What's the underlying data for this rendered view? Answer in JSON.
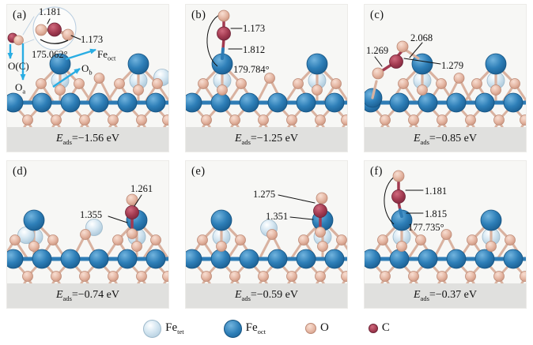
{
  "figure": {
    "energy_symbol": "E",
    "energy_subscript": "ads",
    "panels": [
      {
        "label": "(a)",
        "eads_value": "=−1.56 eV",
        "annotations": {
          "len1": "1.181",
          "len2": "1.173",
          "angle": "175.062°",
          "sites": {
            "oc": {
              "main": "O(C)",
              "sub": ""
            },
            "oa": {
              "main": "O",
              "sub": "a"
            },
            "ob": {
              "main": "O",
              "sub": "b"
            },
            "fe": {
              "main": "Fe",
              "sub": "oct"
            }
          }
        }
      },
      {
        "label": "(b)",
        "eads_value": "=−1.25 eV",
        "annotations": {
          "len1": "1.173",
          "len2": "1.812",
          "angle": "179.784°"
        }
      },
      {
        "label": "(c)",
        "eads_value": "=−0.85 eV",
        "annotations": {
          "len1": "1.269",
          "len2": "2.068",
          "len3": "1.279"
        }
      },
      {
        "label": "(d)",
        "eads_value": "=−0.74 eV",
        "annotations": {
          "len1": "1.261",
          "len2": "1.355"
        }
      },
      {
        "label": "(e)",
        "eads_value": "=−0.59 eV",
        "annotations": {
          "len1": "1.275",
          "len2": "1.351"
        }
      },
      {
        "label": "(f)",
        "eads_value": "=−0.37 eV",
        "annotations": {
          "len1": "1.181",
          "len2": "1.815",
          "angle": "177.735°"
        }
      }
    ],
    "legend": [
      {
        "main": "Fe",
        "sub": "tet",
        "color": "#cfe3f0"
      },
      {
        "main": "Fe",
        "sub": "oct",
        "color": "#2e7fb8"
      },
      {
        "main": "O",
        "sub": "",
        "color": "#e6b9a6"
      },
      {
        "main": "C",
        "sub": "",
        "color": "#a23a50"
      }
    ],
    "colors": {
      "fe_oct": "#2e7fb8",
      "fe_tet": "#cfe3f0",
      "oxygen": "#e6b9a6",
      "carbon": "#a23a50",
      "arrow_accent": "#29ade3",
      "caption_bar": "#e0e0de",
      "bond_pink": "#d9b2a0",
      "bond_blue": "#2e7cb5"
    }
  }
}
